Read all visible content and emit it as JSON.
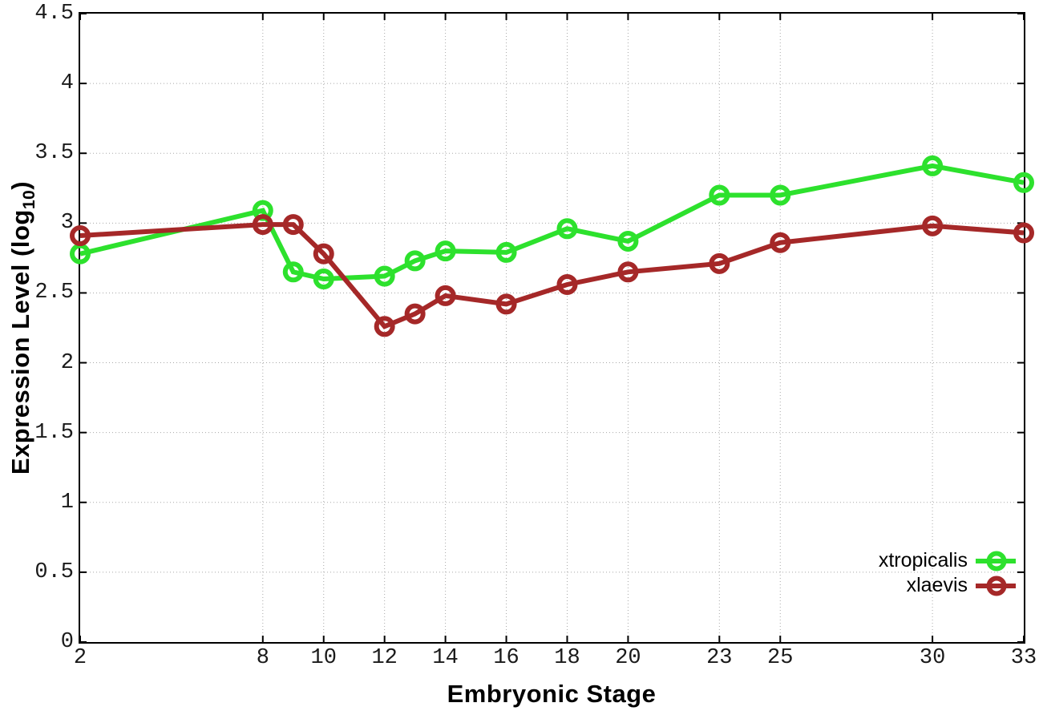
{
  "chart_data": {
    "type": "line",
    "title": "",
    "xlabel": "Embryonic Stage",
    "ylabel": "Expression Level (log10)",
    "ylabel_parts": {
      "pre": "Expression Level (log",
      "sub": "10",
      "post": ")"
    },
    "xlim": [
      2,
      33
    ],
    "ylim": [
      0,
      4.5
    ],
    "x_ticks": [
      2,
      8,
      10,
      12,
      14,
      16,
      18,
      20,
      23,
      25,
      30,
      33
    ],
    "y_ticks": [
      0,
      0.5,
      1,
      1.5,
      2,
      2.5,
      3,
      3.5,
      4,
      4.5
    ],
    "y_tick_labels": [
      "0",
      "0.5",
      "1",
      "1.5",
      "2",
      "2.5",
      "3",
      "3.5",
      "4",
      "4.5"
    ],
    "grid": true,
    "legend_position": "inside-bottom-right",
    "x": [
      2,
      8,
      9,
      10,
      12,
      13,
      14,
      16,
      18,
      20,
      23,
      25,
      30,
      33
    ],
    "series": [
      {
        "name": "xtropicalis",
        "color": "#2de12d",
        "marker": "open-circle",
        "values": [
          2.78,
          3.09,
          2.65,
          2.6,
          2.62,
          2.73,
          2.8,
          2.79,
          2.96,
          2.87,
          3.2,
          3.2,
          3.41,
          3.29
        ]
      },
      {
        "name": "xlaevis",
        "color": "#a52828",
        "marker": "open-circle",
        "values": [
          2.91,
          2.99,
          2.99,
          2.78,
          2.26,
          2.35,
          2.48,
          2.42,
          2.56,
          2.65,
          2.71,
          2.86,
          2.98,
          2.93
        ]
      }
    ],
    "colors": {
      "grid": "#a8a8a8",
      "border": "#000000",
      "tick_text": "#1a1a1a"
    }
  }
}
